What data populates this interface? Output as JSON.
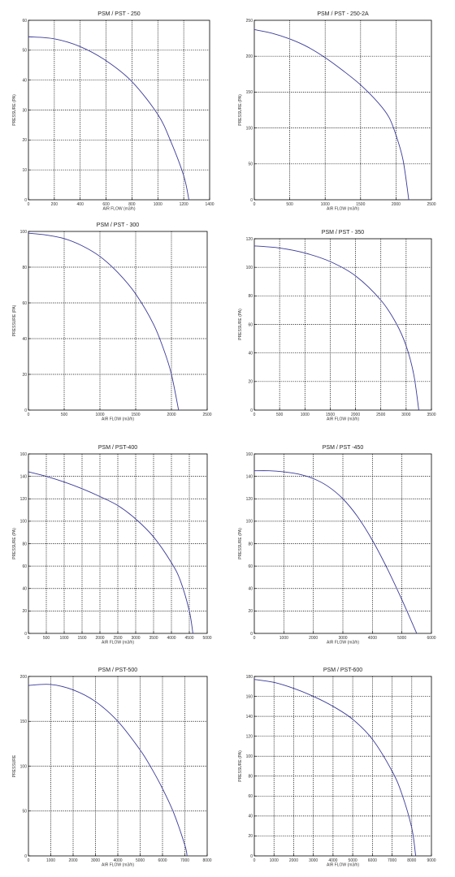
{
  "colors": {
    "curve": "#3a3a9a",
    "axis": "#000000",
    "grid": "#000000",
    "background": "#ffffff"
  },
  "chart_data": [
    {
      "type": "line",
      "title": "PSM / PST - 250",
      "xlabel": "AIR FLOW (m3/h)",
      "ylabel": "PRESSURE (PA)",
      "xlim": [
        0,
        1400
      ],
      "ylim": [
        0,
        60
      ],
      "xticks": [
        0,
        200,
        400,
        600,
        800,
        1000,
        1200,
        1400
      ],
      "yticks": [
        0,
        10,
        20,
        30,
        40,
        50,
        60
      ],
      "grid": true,
      "series": [
        {
          "x": [
            0,
            200,
            400,
            600,
            800,
            1000,
            1100,
            1200,
            1240
          ],
          "y": [
            54.5,
            53.8,
            51.2,
            46.5,
            39.5,
            28.5,
            19.5,
            8,
            0
          ]
        }
      ]
    },
    {
      "type": "line",
      "title": "PSM / PST - 250-2A",
      "xlabel": "AIR FLOW (m3/h)",
      "ylabel": "PRESSURE (PA)",
      "xlim": [
        0,
        2500
      ],
      "ylim": [
        0,
        250
      ],
      "xticks": [
        0,
        500,
        1000,
        1500,
        2000,
        2500
      ],
      "yticks": [
        0,
        50,
        100,
        150,
        200,
        250
      ],
      "grid": true,
      "series": [
        {
          "x": [
            0,
            250,
            500,
            750,
            1000,
            1250,
            1500,
            1750,
            1900,
            2000,
            2100,
            2180
          ],
          "y": [
            237,
            232,
            224,
            213,
            198,
            180,
            160,
            135,
            115,
            90,
            55,
            0
          ]
        }
      ]
    },
    {
      "type": "line",
      "title": "PSM / PST - 300",
      "xlabel": "AIR FLOW (m3/h)",
      "ylabel": "PRESSURE (PA)",
      "xlim": [
        0,
        2500
      ],
      "ylim": [
        0,
        100
      ],
      "xticks": [
        0,
        500,
        1000,
        1500,
        2000,
        2500
      ],
      "yticks": [
        0,
        20,
        40,
        60,
        80,
        100
      ],
      "grid": true,
      "series": [
        {
          "x": [
            0,
            250,
            500,
            750,
            1000,
            1250,
            1500,
            1750,
            1900,
            2000,
            2100
          ],
          "y": [
            99,
            98,
            96,
            92,
            86,
            77,
            65,
            48,
            33,
            20,
            0
          ]
        }
      ]
    },
    {
      "type": "line",
      "title": "PSM / PST - 350",
      "xlabel": "AIR FLOW (m3/h)",
      "ylabel": "PRESSURE (PA)",
      "xlim": [
        0,
        3500
      ],
      "ylim": [
        0,
        120
      ],
      "xticks": [
        0,
        500,
        1000,
        1500,
        2000,
        2500,
        3000,
        3500
      ],
      "yticks": [
        0,
        20,
        40,
        60,
        80,
        100,
        120
      ],
      "grid": true,
      "series": [
        {
          "x": [
            0,
            500,
            1000,
            1500,
            2000,
            2500,
            2800,
            3000,
            3150,
            3250
          ],
          "y": [
            115,
            113.5,
            110,
            104,
            94,
            77,
            61,
            45,
            25,
            0
          ]
        }
      ]
    },
    {
      "type": "line",
      "title": "PSM / PST-400",
      "xlabel": "AIR FLOW (m3/h)",
      "ylabel": "PRESSURE (PA)",
      "xlim": [
        0,
        5000
      ],
      "ylim": [
        0,
        160
      ],
      "xticks": [
        0,
        500,
        1000,
        1500,
        2000,
        2500,
        3000,
        3500,
        4000,
        4500,
        5000
      ],
      "yticks": [
        0,
        20,
        40,
        60,
        80,
        100,
        120,
        140,
        160
      ],
      "grid": true,
      "series": [
        {
          "x": [
            0,
            500,
            1000,
            1500,
            2000,
            2500,
            3000,
            3500,
            4000,
            4250,
            4500,
            4600
          ],
          "y": [
            144,
            140,
            135,
            129,
            122,
            114,
            102,
            86,
            63,
            47,
            20,
            0
          ]
        }
      ]
    },
    {
      "type": "line",
      "title": "PSM / PST -450",
      "xlabel": "AIR FLOW (m3/h)",
      "ylabel": "PRESSURE (PA)",
      "xlim": [
        0,
        6000
      ],
      "ylim": [
        0,
        160
      ],
      "xticks": [
        0,
        1000,
        2000,
        3000,
        4000,
        5000,
        6000
      ],
      "yticks": [
        0,
        20,
        40,
        60,
        80,
        100,
        120,
        140,
        160
      ],
      "grid": true,
      "series": [
        {
          "x": [
            0,
            500,
            1000,
            1500,
            2000,
            2500,
            3000,
            3500,
            4000,
            4500,
            5000,
            5500
          ],
          "y": [
            145,
            145,
            144,
            142,
            138,
            131,
            120,
            104,
            83,
            58,
            30,
            0
          ]
        }
      ]
    },
    {
      "type": "line",
      "title": "PSM / PST-500",
      "xlabel": "AIR FLOW (m3/h)",
      "ylabel": "PRESSURE",
      "xlim": [
        0,
        8000
      ],
      "ylim": [
        0,
        200
      ],
      "xticks": [
        0,
        1000,
        2000,
        3000,
        4000,
        5000,
        6000,
        7000,
        8000
      ],
      "yticks": [
        0,
        50,
        100,
        150,
        200
      ],
      "grid": true,
      "series": [
        {
          "x": [
            0,
            1000,
            2000,
            3000,
            4000,
            5000,
            5500,
            6000,
            6500,
            7000,
            7100
          ],
          "y": [
            190,
            191,
            185,
            172,
            150,
            118,
            98,
            75,
            48,
            12,
            0
          ]
        }
      ]
    },
    {
      "type": "line",
      "title": "PSM / PST-600",
      "xlabel": "AIR FLOW (m3/h)",
      "ylabel": "PRESSURE (PA)",
      "xlim": [
        0,
        9000
      ],
      "ylim": [
        0,
        180
      ],
      "xticks": [
        0,
        1000,
        2000,
        3000,
        4000,
        5000,
        6000,
        7000,
        8000,
        9000
      ],
      "yticks": [
        0,
        20,
        40,
        60,
        80,
        100,
        120,
        140,
        160,
        180
      ],
      "grid": true,
      "series": [
        {
          "x": [
            0,
            1000,
            2000,
            3000,
            4000,
            5000,
            6000,
            7000,
            7500,
            8000,
            8200
          ],
          "y": [
            177,
            174,
            168,
            160,
            150,
            137,
            117,
            85,
            62,
            28,
            0
          ]
        }
      ]
    }
  ]
}
